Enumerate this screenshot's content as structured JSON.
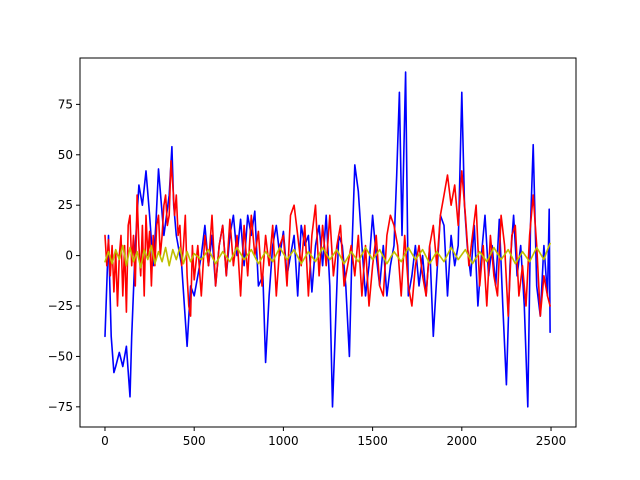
{
  "chart_data": {
    "type": "line",
    "title": "",
    "xlabel": "",
    "ylabel": "",
    "xlim": [
      -140,
      2640
    ],
    "ylim": [
      -85,
      98
    ],
    "xticks": [
      0,
      500,
      1000,
      1500,
      2000,
      2500
    ],
    "yticks": [
      -75,
      -50,
      -25,
      0,
      25,
      50,
      75
    ],
    "grid": false,
    "legend": "none",
    "series": [
      {
        "color": "#0000ff",
        "x": [
          0,
          20,
          35,
          50,
          60,
          80,
          100,
          120,
          140,
          150,
          170,
          190,
          210,
          230,
          250,
          270,
          285,
          300,
          330,
          360,
          375,
          385,
          400,
          430,
          460,
          480,
          500,
          520,
          540,
          560,
          580,
          600,
          620,
          640,
          660,
          680,
          700,
          720,
          740,
          760,
          780,
          800,
          820,
          840,
          860,
          885,
          900,
          920,
          940,
          960,
          980,
          1000,
          1020,
          1040,
          1060,
          1080,
          1100,
          1120,
          1140,
          1160,
          1180,
          1200,
          1220,
          1240,
          1260,
          1275,
          1290,
          1310,
          1330,
          1350,
          1370,
          1385,
          1400,
          1420,
          1440,
          1460,
          1480,
          1500,
          1520,
          1540,
          1560,
          1580,
          1600,
          1620,
          1635,
          1650,
          1665,
          1685,
          1700,
          1720,
          1740,
          1760,
          1780,
          1800,
          1820,
          1840,
          1860,
          1880,
          1900,
          1920,
          1940,
          1960,
          1980,
          2000,
          2015,
          2030,
          2050,
          2070,
          2090,
          2110,
          2130,
          2150,
          2170,
          2190,
          2210,
          2230,
          2250,
          2270,
          2290,
          2310,
          2330,
          2350,
          2370,
          2385,
          2400,
          2420,
          2440,
          2460,
          2480,
          2490,
          2495
        ],
        "y": [
          -40,
          10,
          -40,
          -58,
          -55,
          -48,
          -55,
          -45,
          -70,
          -40,
          5,
          35,
          25,
          42,
          20,
          -5,
          15,
          43,
          10,
          30,
          54,
          25,
          10,
          -5,
          -45,
          -15,
          -20,
          -10,
          0,
          15,
          -5,
          10,
          -15,
          5,
          15,
          -10,
          10,
          20,
          0,
          18,
          -5,
          20,
          10,
          22,
          -15,
          -10,
          -53,
          -20,
          5,
          15,
          0,
          12,
          -10,
          0,
          10,
          -20,
          15,
          5,
          10,
          -18,
          5,
          15,
          -5,
          20,
          -15,
          -75,
          -40,
          10,
          5,
          -15,
          -50,
          5,
          45,
          32,
          5,
          -20,
          -5,
          20,
          0,
          -15,
          5,
          -20,
          -5,
          5,
          40,
          81,
          10,
          91,
          -20,
          -10,
          5,
          -15,
          0,
          -20,
          5,
          -40,
          -10,
          20,
          15,
          -20,
          10,
          -5,
          5,
          81,
          25,
          5,
          -10,
          15,
          -25,
          0,
          20,
          -10,
          5,
          -15,
          18,
          -25,
          -64,
          -5,
          20,
          -10,
          5,
          -25,
          -75,
          15,
          55,
          -15,
          -30,
          5,
          -20,
          23,
          -38
        ]
      },
      {
        "color": "#ff0000",
        "x": [
          0,
          10,
          20,
          30,
          40,
          50,
          60,
          70,
          80,
          90,
          100,
          110,
          120,
          130,
          140,
          150,
          160,
          170,
          180,
          190,
          200,
          210,
          220,
          230,
          240,
          250,
          260,
          270,
          280,
          290,
          300,
          310,
          320,
          330,
          340,
          350,
          360,
          370,
          380,
          390,
          400,
          410,
          420,
          430,
          440,
          450,
          460,
          470,
          480,
          490,
          500,
          520,
          540,
          560,
          580,
          600,
          620,
          640,
          660,
          680,
          700,
          720,
          740,
          760,
          780,
          800,
          820,
          840,
          860,
          880,
          900,
          920,
          940,
          960,
          980,
          1000,
          1020,
          1040,
          1060,
          1080,
          1100,
          1120,
          1140,
          1160,
          1180,
          1200,
          1220,
          1240,
          1260,
          1280,
          1300,
          1320,
          1340,
          1360,
          1380,
          1400,
          1420,
          1440,
          1460,
          1480,
          1500,
          1520,
          1540,
          1560,
          1580,
          1600,
          1620,
          1640,
          1660,
          1680,
          1700,
          1720,
          1740,
          1760,
          1780,
          1800,
          1820,
          1840,
          1860,
          1880,
          1900,
          1920,
          1940,
          1960,
          1980,
          2000,
          2020,
          2040,
          2060,
          2080,
          2100,
          2120,
          2140,
          2160,
          2180,
          2200,
          2220,
          2240,
          2260,
          2280,
          2300,
          2320,
          2340,
          2360,
          2380,
          2400,
          2420,
          2440,
          2460,
          2480,
          2495
        ],
        "y": [
          10,
          -5,
          8,
          -10,
          5,
          -18,
          2,
          -25,
          0,
          10,
          -20,
          5,
          -28,
          15,
          20,
          -5,
          10,
          -15,
          30,
          5,
          -10,
          15,
          -20,
          20,
          0,
          12,
          -15,
          10,
          -5,
          15,
          20,
          0,
          10,
          25,
          30,
          15,
          20,
          47,
          35,
          20,
          30,
          10,
          15,
          -5,
          5,
          20,
          -10,
          -25,
          -30,
          5,
          -12,
          5,
          -20,
          10,
          -5,
          20,
          -15,
          5,
          15,
          -10,
          18,
          -5,
          10,
          -20,
          15,
          -10,
          20,
          0,
          12,
          -15,
          10,
          -5,
          15,
          -20,
          5,
          10,
          -15,
          20,
          25,
          10,
          -5,
          15,
          -20,
          10,
          25,
          -10,
          15,
          -5,
          20,
          -10,
          5,
          15,
          -15,
          -5,
          5,
          -10,
          10,
          -20,
          5,
          -25,
          -5,
          10,
          -15,
          -20,
          10,
          20,
          15,
          5,
          -20,
          10,
          -15,
          -25,
          -5,
          5,
          -10,
          -20,
          5,
          15,
          -5,
          20,
          30,
          40,
          25,
          35,
          15,
          42,
          20,
          -5,
          10,
          25,
          -15,
          5,
          -25,
          10,
          -10,
          -20,
          20,
          5,
          -30,
          10,
          15,
          -20,
          -5,
          -25,
          10,
          30,
          5,
          -30,
          -10,
          -20,
          -25
        ]
      },
      {
        "color": "#bfbf00",
        "x": [
          0,
          20,
          40,
          60,
          80,
          100,
          120,
          140,
          160,
          180,
          200,
          220,
          240,
          260,
          280,
          300,
          320,
          340,
          360,
          380,
          400,
          420,
          440,
          460,
          480,
          500,
          540,
          580,
          620,
          660,
          700,
          740,
          780,
          820,
          860,
          900,
          940,
          980,
          1020,
          1060,
          1100,
          1140,
          1180,
          1220,
          1260,
          1300,
          1340,
          1380,
          1420,
          1460,
          1500,
          1540,
          1580,
          1620,
          1660,
          1700,
          1740,
          1780,
          1820,
          1860,
          1900,
          1940,
          1980,
          2020,
          2060,
          2100,
          2140,
          2180,
          2220,
          2260,
          2300,
          2340,
          2380,
          2420,
          2460,
          2480,
          2495
        ],
        "y": [
          -3,
          2,
          -4,
          3,
          -2,
          5,
          -5,
          4,
          -3,
          2,
          -6,
          3,
          -2,
          5,
          -4,
          2,
          -3,
          4,
          -5,
          3,
          -2,
          4,
          -4,
          2,
          -3,
          1,
          -2,
          3,
          -4,
          2,
          -3,
          4,
          -2,
          3,
          -4,
          2,
          -3,
          4,
          -2,
          3,
          -4,
          2,
          -3,
          4,
          -2,
          3,
          -4,
          2,
          -3,
          4,
          -2,
          3,
          -4,
          2,
          -3,
          4,
          -2,
          3,
          -4,
          2,
          -3,
          4,
          -2,
          3,
          -4,
          2,
          -3,
          4,
          -2,
          3,
          -4,
          2,
          -3,
          4,
          -2,
          3,
          6
        ]
      }
    ]
  }
}
